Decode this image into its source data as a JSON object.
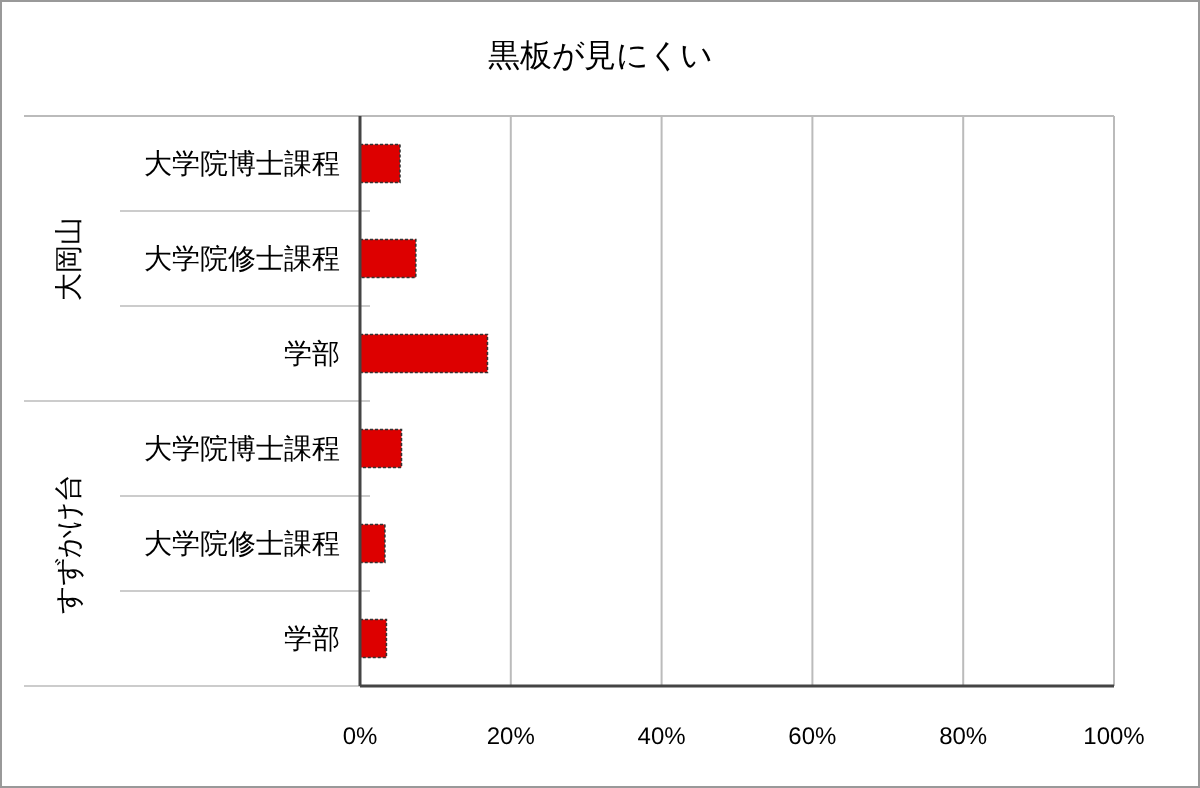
{
  "chart_data": {
    "type": "bar",
    "orientation": "horizontal",
    "title": "黒板が見にくい",
    "categories": [
      "大学院博士課程",
      "大学院修士課程",
      "学部",
      "大学院博士課程",
      "大学院修士課程",
      "学部"
    ],
    "values": [
      5.3,
      7.4,
      16.9,
      5.5,
      3.3,
      3.5
    ],
    "color": "#dd0000",
    "xlim": [
      0,
      100
    ],
    "xticks": [
      {
        "value": 0,
        "label": "0%"
      },
      {
        "value": 20,
        "label": "20%"
      },
      {
        "value": 40,
        "label": "40%"
      },
      {
        "value": 60,
        "label": "60%"
      },
      {
        "value": 80,
        "label": "80%"
      },
      {
        "value": 100,
        "label": "100%"
      }
    ],
    "grid": "x",
    "annotations": [
      "大岡山",
      "すずかけ台"
    ]
  }
}
